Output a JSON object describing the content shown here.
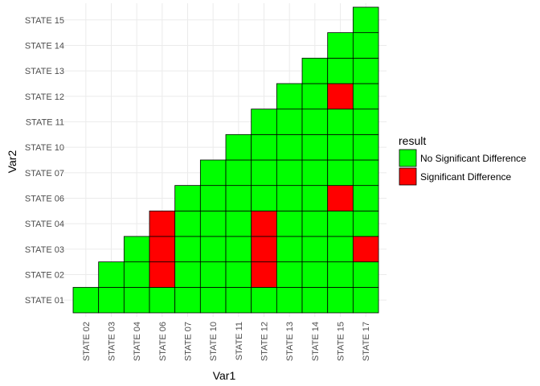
{
  "chart_data": {
    "type": "heatmap",
    "title": "",
    "xlabel": "Var1",
    "ylabel": "Var2",
    "x_categories": [
      "STATE 02",
      "STATE 03",
      "STATE 04",
      "STATE 06",
      "STATE 07",
      "STATE 10",
      "STATE 11",
      "STATE 12",
      "STATE 13",
      "STATE 14",
      "STATE 15",
      "STATE 17"
    ],
    "y_categories": [
      "STATE 01",
      "STATE 02",
      "STATE 03",
      "STATE 04",
      "STATE 06",
      "STATE 07",
      "STATE 10",
      "STATE 11",
      "STATE 12",
      "STATE 13",
      "STATE 14",
      "STATE 15"
    ],
    "cells_note": "lower triangle: Var1 index >= Var2 index",
    "significant_pairs": [
      [
        "STATE 06",
        "STATE 02"
      ],
      [
        "STATE 06",
        "STATE 03"
      ],
      [
        "STATE 06",
        "STATE 04"
      ],
      [
        "STATE 12",
        "STATE 02"
      ],
      [
        "STATE 12",
        "STATE 03"
      ],
      [
        "STATE 12",
        "STATE 04"
      ],
      [
        "STATE 15",
        "STATE 06"
      ],
      [
        "STATE 15",
        "STATE 12"
      ],
      [
        "STATE 17",
        "STATE 03"
      ]
    ],
    "legend": {
      "title": "result",
      "position": "right",
      "entries": [
        {
          "label": "No Significant Difference",
          "color": "#00ff00"
        },
        {
          "label": "Significant Difference",
          "color": "#ff0000"
        }
      ]
    },
    "grid": true
  }
}
